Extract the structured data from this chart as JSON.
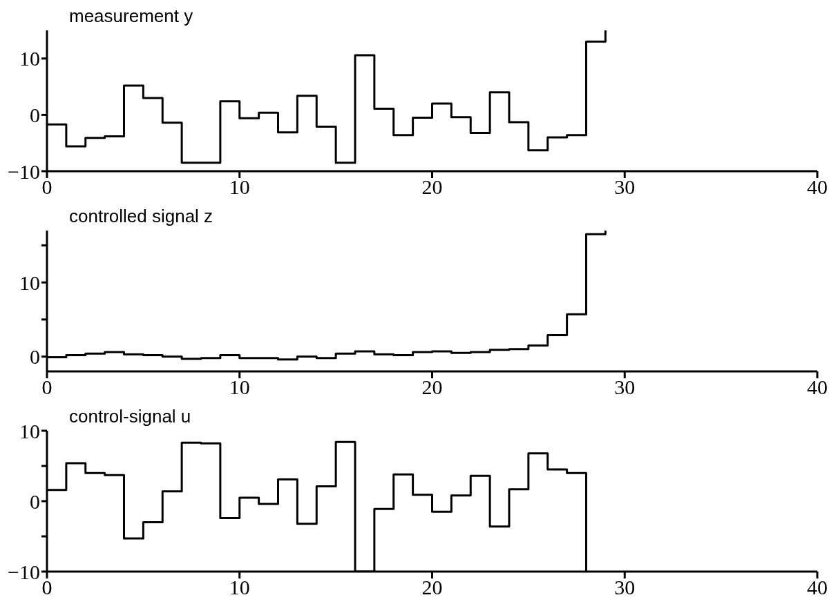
{
  "chart_data": [
    {
      "type": "step",
      "title": "measurement y",
      "color": "#000000",
      "x": [
        0,
        1,
        2,
        3,
        4,
        5,
        6,
        7,
        8,
        9,
        10,
        11,
        12,
        13,
        14,
        15,
        16,
        17,
        18,
        19,
        20,
        21,
        22,
        23,
        24,
        25,
        26,
        27,
        28,
        29
      ],
      "values": [
        -1.7,
        -5.6,
        -4.1,
        -3.8,
        5.2,
        3.0,
        -1.4,
        -8.5,
        -8.5,
        2.4,
        -0.6,
        0.4,
        -3.1,
        3.4,
        -2.1,
        -8.5,
        10.6,
        1.1,
        -3.6,
        -0.5,
        2.0,
        -0.4,
        -3.2,
        4.0,
        -1.3,
        -6.3,
        -4.0,
        -3.6,
        13.0,
        15
      ],
      "xlim": [
        0,
        40
      ],
      "xticks": [
        0,
        10,
        20,
        30,
        40
      ],
      "ylim": [
        -10,
        15
      ],
      "yticks": [
        -10,
        0,
        10
      ],
      "grid": false
    },
    {
      "type": "step",
      "title": "controlled signal z",
      "color": "#000000",
      "x": [
        0,
        1,
        2,
        3,
        4,
        5,
        6,
        7,
        8,
        9,
        10,
        11,
        12,
        13,
        14,
        15,
        16,
        17,
        18,
        19,
        20,
        21,
        22,
        23,
        24,
        25,
        26,
        27,
        28,
        29
      ],
      "values": [
        -0.1,
        0.2,
        0.4,
        0.6,
        0.3,
        0.2,
        0,
        -0.3,
        -0.2,
        0.2,
        -0.2,
        -0.2,
        -0.4,
        0,
        -0.2,
        0.4,
        0.7,
        0.3,
        0.2,
        0.6,
        0.7,
        0.5,
        0.6,
        0.9,
        1.0,
        1.5,
        2.9,
        5.7,
        16.5,
        17
      ],
      "xlim": [
        0,
        40
      ],
      "xticks": [
        0,
        10,
        20,
        30,
        40
      ],
      "ylim": [
        -2,
        17
      ],
      "yticks": [
        0,
        {
          "value": 5,
          "label": null
        },
        10,
        {
          "value": 15,
          "label": null
        }
      ],
      "grid": false
    },
    {
      "type": "step",
      "title": "control-signal u",
      "color": "#000000",
      "x": [
        0,
        1,
        2,
        3,
        4,
        5,
        6,
        7,
        8,
        9,
        10,
        11,
        12,
        13,
        14,
        15,
        16,
        17,
        18,
        19,
        20,
        21,
        22,
        23,
        24,
        25,
        26,
        27,
        28
      ],
      "values": [
        1.6,
        5.4,
        4.0,
        3.7,
        -5.3,
        -3.0,
        1.4,
        8.3,
        8.2,
        -2.4,
        0.5,
        -0.4,
        3.1,
        -3.2,
        2.1,
        8.4,
        -10,
        -1.1,
        3.8,
        0.9,
        -1.5,
        0.8,
        3.6,
        -3.6,
        1.7,
        6.8,
        4.5,
        4.0,
        -10
      ],
      "xlim": [
        0,
        40
      ],
      "xticks": [
        0,
        10,
        20,
        30,
        40
      ],
      "ylim": [
        -10,
        10
      ],
      "yticks": [
        -10,
        {
          "value": -5,
          "label": null
        },
        0,
        {
          "value": 5,
          "label": null
        },
        10
      ],
      "grid": false
    }
  ]
}
